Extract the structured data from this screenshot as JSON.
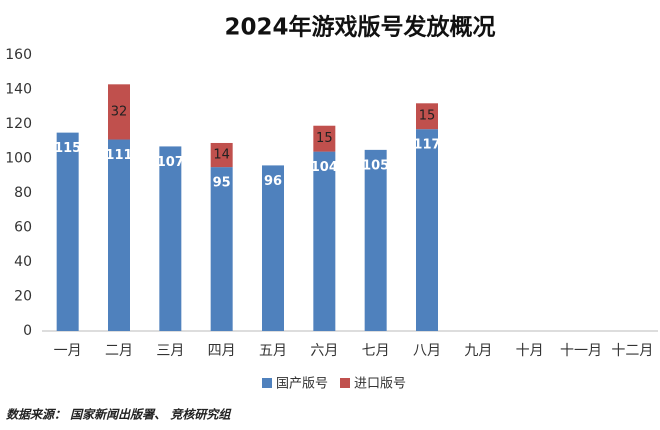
{
  "chart_data": {
    "type": "stacked_bar",
    "title": "2024年游戏版号发放概况",
    "categories": [
      "一月",
      "二月",
      "三月",
      "四月",
      "五月",
      "六月",
      "七月",
      "八月",
      "九月",
      "十月",
      "十一月",
      "十二月"
    ],
    "series": [
      {
        "name": "国产版号",
        "color": "#4f81bd",
        "values": [
          115,
          111,
          107,
          95,
          96,
          104,
          105,
          117,
          null,
          null,
          null,
          null
        ]
      },
      {
        "name": "进口版号",
        "color": "#c0504d",
        "values": [
          null,
          32,
          null,
          14,
          null,
          15,
          null,
          15,
          null,
          null,
          null,
          null
        ]
      }
    ],
    "ylim": [
      0,
      160
    ],
    "yticks": [
      0,
      20,
      40,
      60,
      80,
      100,
      120,
      140,
      160
    ],
    "grid": false,
    "legend": "bottom",
    "source": "数据来源： 国家新闻出版署、 竞核研究组"
  }
}
